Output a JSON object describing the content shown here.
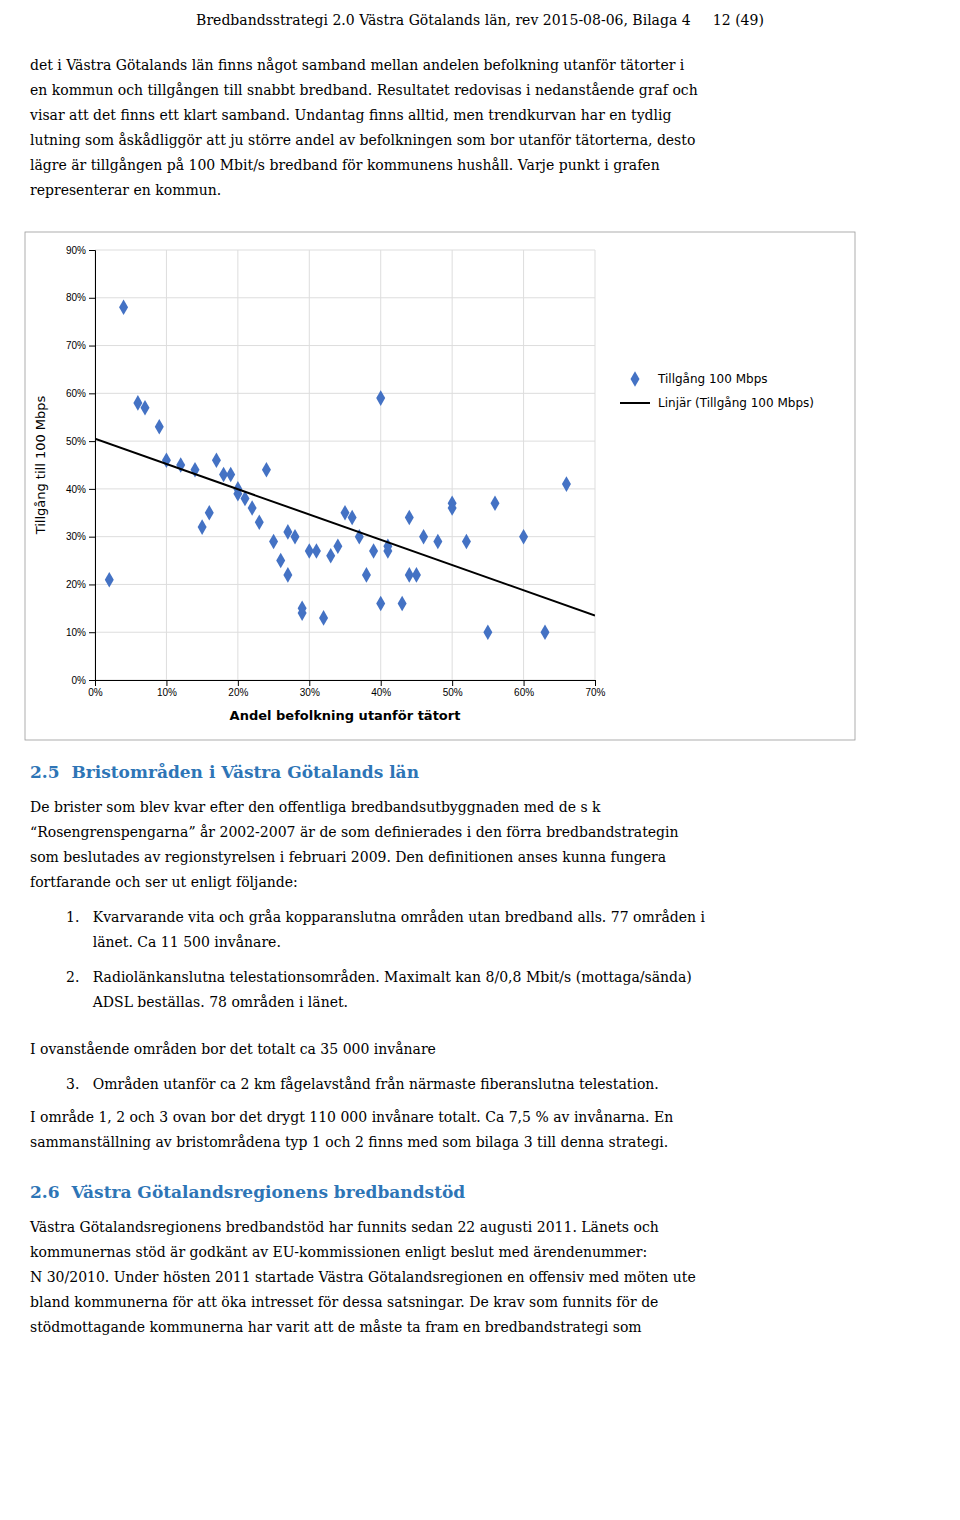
{
  "header": "Bredbandsstrategi 2.0 Västra Götalands län, rev 2015-08-06, Bilaga 4     12 (49)",
  "paragraph1": "det i Västra Götalands län finns något samband mellan andelen befolkning utanför tätorter i\nen kommun och tillgången till snabbt bredband. Resultatet redovisas i nedanstående graf och\nvisar att det finns ett klart samband. Undantag finns alltid, men trendkurvan har en tydlig\nlutning som åskådliggör att ju större andel av befolkningen som bor utanför tätorterna, desto\nlägre är tillgången på 100 Mbit/s bredband för kommunens hushåll. Varje punkt i grafen\nrepresenterar en kommun.",
  "chart_data": {
    "type": "scatter",
    "xlabel": "Andel befolkning utanför tätort",
    "ylabel": "Tillgång till 100 Mbps",
    "series": [
      {
        "name": "Tillgång 100 Mbps",
        "type": "scatter",
        "color": "#4472C4",
        "marker": "diamond",
        "x": [
          0.02,
          0.04,
          0.06,
          0.07,
          0.09,
          0.1,
          0.12,
          0.14,
          0.15,
          0.16,
          0.17,
          0.18,
          0.19,
          0.2,
          0.2,
          0.21,
          0.22,
          0.23,
          0.24,
          0.25,
          0.26,
          0.27,
          0.27,
          0.28,
          0.29,
          0.29,
          0.3,
          0.31,
          0.32,
          0.33,
          0.34,
          0.35,
          0.36,
          0.37,
          0.38,
          0.39,
          0.4,
          0.4,
          0.41,
          0.41,
          0.43,
          0.44,
          0.44,
          0.45,
          0.46,
          0.48,
          0.5,
          0.5,
          0.52,
          0.55,
          0.56,
          0.6,
          0.63,
          0.66
        ],
        "values": [
          0.21,
          0.78,
          0.58,
          0.57,
          0.53,
          0.46,
          0.45,
          0.44,
          0.32,
          0.35,
          0.46,
          0.43,
          0.43,
          0.4,
          0.39,
          0.38,
          0.36,
          0.33,
          0.44,
          0.29,
          0.25,
          0.31,
          0.22,
          0.3,
          0.14,
          0.15,
          0.27,
          0.27,
          0.13,
          0.26,
          0.28,
          0.35,
          0.34,
          0.3,
          0.22,
          0.27,
          0.16,
          0.59,
          0.28,
          0.27,
          0.16,
          0.34,
          0.22,
          0.22,
          0.3,
          0.29,
          0.36,
          0.37,
          0.29,
          0.1,
          0.37,
          0.3,
          0.1,
          0.41
        ]
      },
      {
        "name": "Linjär (Tillgång 100 Mbps)",
        "type": "line",
        "color": "#000000",
        "x": [
          0.0,
          0.7
        ],
        "values": [
          0.505,
          0.135
        ]
      }
    ],
    "xlim": [
      0.0,
      0.7
    ],
    "ylim": [
      0.0,
      0.9
    ],
    "xticks": [
      {
        "value": 0.0,
        "label": "0%"
      },
      {
        "value": 0.1,
        "label": "10%"
      },
      {
        "value": 0.2,
        "label": "20%"
      },
      {
        "value": 0.3,
        "label": "30%"
      },
      {
        "value": 0.4,
        "label": "40%"
      },
      {
        "value": 0.5,
        "label": "50%"
      },
      {
        "value": 0.6,
        "label": "60%"
      },
      {
        "value": 0.7,
        "label": "70%"
      }
    ],
    "yticks": [
      {
        "value": 0.0,
        "label": "0%"
      },
      {
        "value": 0.1,
        "label": "10%"
      },
      {
        "value": 0.2,
        "label": "20%"
      },
      {
        "value": 0.3,
        "label": "30%"
      },
      {
        "value": 0.4,
        "label": "40%"
      },
      {
        "value": 0.5,
        "label": "50%"
      },
      {
        "value": 0.6,
        "label": "60%"
      },
      {
        "value": 0.7,
        "label": "70%"
      },
      {
        "value": 0.8,
        "label": "80%"
      },
      {
        "value": 0.9,
        "label": "90%"
      }
    ],
    "grid": true,
    "legend": "right"
  },
  "section25_title": "2.5  Bristområden i Västra Götalands län",
  "section25_body": "De brister som blev kvar efter den offentliga bredbandsutbyggnaden med de s k\n“Rosengrenspengarna” år 2002-2007 är de som definierades i den förra bredbandstrategin\nsom beslutades av regionstyrelsen i februari 2009. Den definitionen anses kunna fungera\nfortfarande och ser ut enligt följande:",
  "list_item1": "1.   Kvarvarande vita och gråa kopparanslutna områden utan bredband alls. 77 områden i\n      länet. Ca 11 500 invånare.",
  "list_item2": "2.   Radiolänkanslutna telestationsområden. Maximalt kan 8/0,8 Mbit/s (mottaga/sända)\n      ADSL beställas. 78 områden i länet.",
  "between_text": "I ovanstående områden bor det totalt ca 35 000 invånare",
  "list_item3": "3.   Områden utanför ca 2 km fågelavstånd från närmaste fiberanslutna telestation.",
  "closing_text": "I område 1, 2 och 3 ovan bor det drygt 110 000 invånare totalt. Ca 7,5 % av invånarna. En\nsammanställning av bristområdena typ 1 och 2 finns med som bilaga 3 till denna strategi.",
  "section26_title": "2.6  Västra Götalandsregionens bredbandstöd",
  "section26_body": "Västra Götalandsregionens bredbandstöd har funnits sedan 22 augusti 2011. Länets och\nkommunernas stöd är godkänt av EU-kommissionen enligt beslut med ärendenummer:\nN 30/2010. Under hösten 2011 startade Västra Götalandsregionen en offensiv med möten ute\nbland kommunerna för att öka intresset för dessa satsningar. De krav som funnits för de\nstödmottagande kommunerna har varit att de måste ta fram en bredbandstrategi som"
}
